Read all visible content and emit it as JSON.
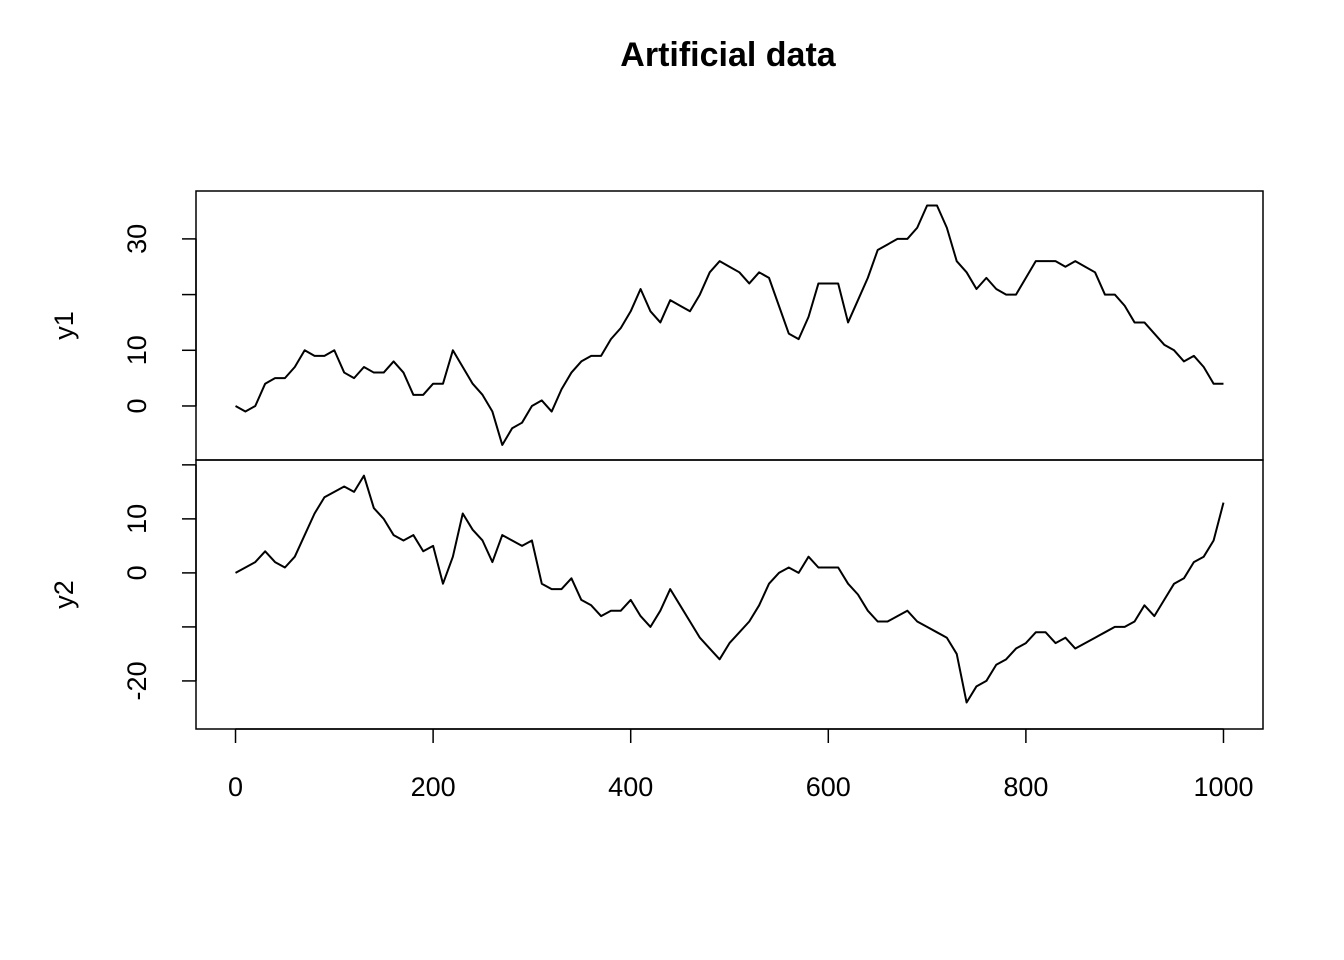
{
  "chart_data": [
    {
      "type": "line",
      "title": "Artificial data",
      "ylabel": "y1",
      "color": "#000000",
      "x": [
        0,
        10,
        20,
        30,
        40,
        50,
        60,
        70,
        80,
        90,
        100,
        110,
        120,
        130,
        140,
        150,
        160,
        170,
        180,
        190,
        200,
        210,
        220,
        230,
        240,
        250,
        260,
        270,
        280,
        290,
        300,
        310,
        320,
        330,
        340,
        350,
        360,
        370,
        380,
        390,
        400,
        410,
        420,
        430,
        440,
        450,
        460,
        470,
        480,
        490,
        500,
        510,
        520,
        530,
        540,
        550,
        560,
        570,
        580,
        590,
        600,
        610,
        620,
        630,
        640,
        650,
        660,
        670,
        680,
        690,
        700,
        710,
        720,
        730,
        740,
        750,
        760,
        770,
        780,
        790,
        800,
        810,
        820,
        830,
        840,
        850,
        860,
        870,
        880,
        890,
        900,
        910,
        920,
        930,
        940,
        950,
        960,
        970,
        980,
        990,
        1000
      ],
      "values": [
        0,
        -1,
        0,
        4,
        5,
        5,
        7,
        10,
        9,
        9,
        10,
        6,
        5,
        7,
        6,
        6,
        8,
        6,
        2,
        2,
        4,
        4,
        10,
        7,
        4,
        2,
        -1,
        -7,
        -4,
        -3,
        0,
        1,
        -1,
        3,
        6,
        8,
        9,
        9,
        12,
        14,
        17,
        21,
        17,
        15,
        19,
        18,
        17,
        20,
        24,
        26,
        25,
        24,
        22,
        24,
        23,
        18,
        13,
        12,
        16,
        22,
        22,
        22,
        15,
        19,
        23,
        28,
        29,
        30,
        30,
        32,
        36,
        36,
        32,
        26,
        24,
        21,
        23,
        21,
        20,
        20,
        23,
        26,
        26,
        26,
        25,
        26,
        25,
        24,
        20,
        20,
        18,
        15,
        15,
        13,
        11,
        10,
        8,
        9,
        7,
        4,
        4
      ],
      "xlim": [
        -40,
        1040
      ],
      "ylim": [
        -9.7,
        38.6
      ],
      "yticks": [
        0,
        10,
        {
          "value": 20,
          "label": null
        },
        30
      ]
    },
    {
      "type": "line",
      "ylabel": "y2",
      "color": "#000000",
      "x": [
        0,
        10,
        20,
        30,
        40,
        50,
        60,
        70,
        80,
        90,
        100,
        110,
        120,
        130,
        140,
        150,
        160,
        170,
        180,
        190,
        200,
        210,
        220,
        230,
        240,
        250,
        260,
        270,
        280,
        290,
        300,
        310,
        320,
        330,
        340,
        350,
        360,
        370,
        380,
        390,
        400,
        410,
        420,
        430,
        440,
        450,
        460,
        470,
        480,
        490,
        500,
        510,
        520,
        530,
        540,
        550,
        560,
        570,
        580,
        590,
        600,
        610,
        620,
        630,
        640,
        650,
        660,
        670,
        680,
        690,
        700,
        710,
        720,
        730,
        740,
        750,
        760,
        770,
        780,
        790,
        800,
        810,
        820,
        830,
        840,
        850,
        860,
        870,
        880,
        890,
        900,
        910,
        920,
        930,
        940,
        950,
        960,
        970,
        980,
        990,
        1000
      ],
      "values": [
        0,
        1,
        2,
        4,
        2,
        1,
        3,
        7,
        11,
        14,
        15,
        16,
        15,
        18,
        12,
        10,
        7,
        6,
        7,
        4,
        5,
        -2,
        3,
        11,
        8,
        6,
        2,
        7,
        6,
        5,
        6,
        -2,
        -3,
        -3,
        -1,
        -5,
        -6,
        -8,
        -7,
        -7,
        -5,
        -8,
        -10,
        -7,
        -3,
        -6,
        -9,
        -12,
        -14,
        -16,
        -13,
        -11,
        -9,
        -6,
        -2,
        0,
        1,
        0,
        3,
        1,
        1,
        1,
        -2,
        -4,
        -7,
        -9,
        -9,
        -8,
        -7,
        -9,
        -10,
        -11,
        -12,
        -15,
        -24,
        -21,
        -20,
        -17,
        -16,
        -14,
        -13,
        -11,
        -11,
        -13,
        -12,
        -14,
        -13,
        -12,
        -11,
        -10,
        -10,
        -9,
        -6,
        -8,
        -5,
        -2,
        -1,
        2,
        3,
        6,
        13
      ],
      "xlim": [
        -40,
        1040
      ],
      "ylim": [
        -28.9,
        20.9
      ],
      "yticks": [
        -20,
        {
          "value": -10,
          "label": null
        },
        0,
        10,
        {
          "value": 20,
          "label": null
        }
      ],
      "xticks": [
        0,
        200,
        400,
        600,
        800,
        1000
      ]
    }
  ]
}
